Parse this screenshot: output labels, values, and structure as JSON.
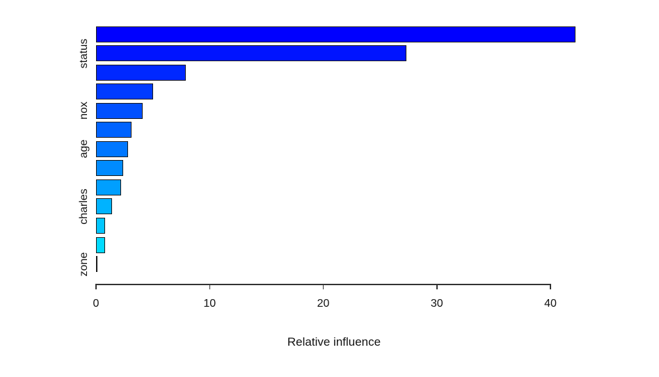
{
  "chart_data": {
    "type": "bar",
    "orientation": "horizontal",
    "title": "",
    "xlabel": "Relative influence",
    "ylabel": "",
    "xlim": [
      0,
      40
    ],
    "x_ticks": [
      0,
      10,
      20,
      30,
      40
    ],
    "grid": false,
    "legend": null,
    "colors": {
      "background": "#ffffff",
      "bar_border": "#1a1a1a",
      "axis": "#333333",
      "text": "#111111"
    },
    "bars": [
      {
        "value": 42.2,
        "color": "#0000FF",
        "label": ""
      },
      {
        "value": 27.3,
        "color": "#0014FF",
        "label": "status"
      },
      {
        "value": 7.9,
        "color": "#0028FF",
        "label": ""
      },
      {
        "value": 5.0,
        "color": "#003BFF",
        "label": ""
      },
      {
        "value": 4.1,
        "color": "#0050FF",
        "label": "nox"
      },
      {
        "value": 3.1,
        "color": "#0063FF",
        "label": ""
      },
      {
        "value": 2.8,
        "color": "#0077FF",
        "label": "age"
      },
      {
        "value": 2.4,
        "color": "#008BFF",
        "label": ""
      },
      {
        "value": 2.2,
        "color": "#009FFF",
        "label": ""
      },
      {
        "value": 1.4,
        "color": "#00B3FF",
        "label": "charles"
      },
      {
        "value": 0.8,
        "color": "#00C6FF",
        "label": ""
      },
      {
        "value": 0.8,
        "color": "#00DAFF",
        "label": ""
      },
      {
        "value": 0.05,
        "color": "#00EEFF",
        "label": "zone"
      }
    ]
  }
}
